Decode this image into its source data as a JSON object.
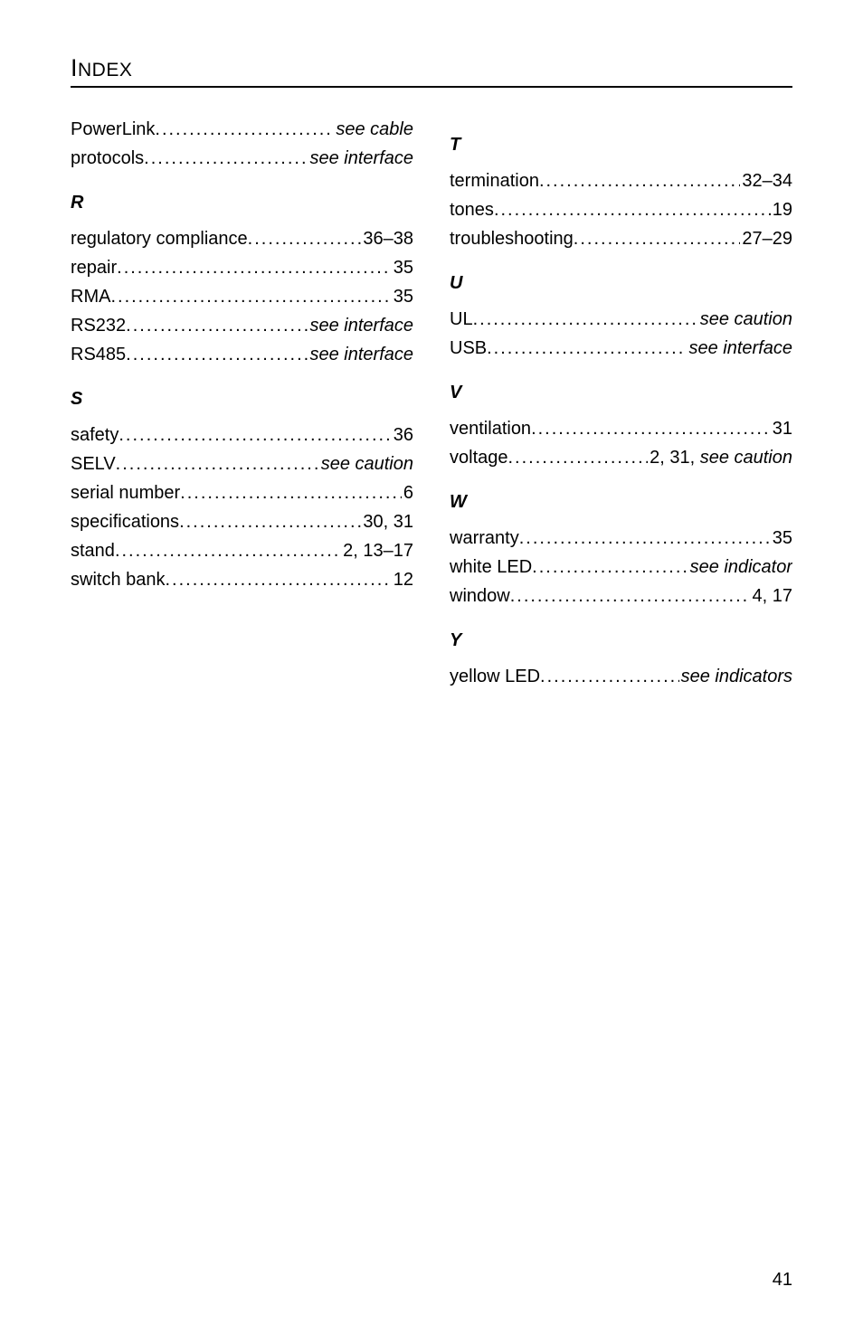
{
  "heading_first": "I",
  "heading_rest": "NDEX",
  "page_number": "41",
  "left_column": [
    {
      "type": "entry",
      "term": "PowerLink",
      "loc": "see cable",
      "loc_italic": true
    },
    {
      "type": "entry",
      "term": "protocols",
      "loc": "see interface",
      "loc_italic": true
    },
    {
      "type": "section",
      "letter": "R"
    },
    {
      "type": "entry",
      "term": "regulatory compliance",
      "loc": "36–38"
    },
    {
      "type": "entry",
      "term": "repair",
      "loc": "35"
    },
    {
      "type": "entry",
      "term": "RMA",
      "loc": "35"
    },
    {
      "type": "entry",
      "term": "RS232",
      "loc": "see interface",
      "loc_italic": true
    },
    {
      "type": "entry",
      "term": "RS485",
      "loc": "see interface",
      "loc_italic": true
    },
    {
      "type": "section",
      "letter": "S"
    },
    {
      "type": "entry",
      "term": "safety",
      "loc": "36"
    },
    {
      "type": "entry",
      "term": "SELV",
      "loc": "see caution",
      "loc_italic": true
    },
    {
      "type": "entry",
      "term": "serial number",
      "loc": "6"
    },
    {
      "type": "entry",
      "term": "specifications",
      "loc": "30, 31"
    },
    {
      "type": "entry",
      "term": "stand",
      "loc": "2, 13–17"
    },
    {
      "type": "entry",
      "term": "switch bank",
      "loc": "12"
    }
  ],
  "right_column": [
    {
      "type": "section",
      "letter": "T"
    },
    {
      "type": "entry",
      "term": "termination",
      "loc": "32–34"
    },
    {
      "type": "entry",
      "term": "tones",
      "loc": "19"
    },
    {
      "type": "entry",
      "term": "troubleshooting",
      "loc": "27–29"
    },
    {
      "type": "section",
      "letter": "U"
    },
    {
      "type": "entry",
      "term": "UL",
      "loc": "see caution",
      "loc_italic": true
    },
    {
      "type": "entry",
      "term": "USB",
      "loc": "see interface",
      "loc_italic": true
    },
    {
      "type": "section",
      "letter": "V"
    },
    {
      "type": "entry",
      "term": "ventilation",
      "loc": "31"
    },
    {
      "type": "entry",
      "term": "voltage",
      "loc_parts": [
        {
          "text": "2, 31, ",
          "italic": false
        },
        {
          "text": "see caution",
          "italic": true
        }
      ]
    },
    {
      "type": "section",
      "letter": "W"
    },
    {
      "type": "entry",
      "term": "warranty",
      "loc": "35"
    },
    {
      "type": "entry",
      "term": "white LED",
      "loc": "see indicator",
      "loc_italic": true
    },
    {
      "type": "entry",
      "term": "window",
      "loc": "4, 17"
    },
    {
      "type": "section",
      "letter": "Y"
    },
    {
      "type": "entry",
      "term": "yellow LED",
      "loc": "see indicators",
      "loc_italic": true
    }
  ]
}
